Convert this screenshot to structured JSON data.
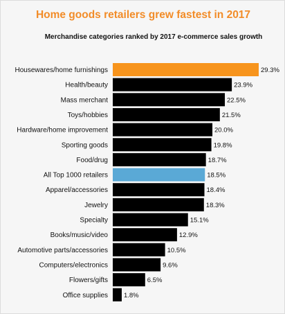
{
  "chart_data": {
    "type": "bar",
    "orientation": "horizontal",
    "title": "Home goods retailers grew fastest in 2017",
    "subtitle": "Merchandise categories ranked by 2017 e-commerce sales growth",
    "categories": [
      "Housewares/home furnishings",
      "Health/beauty",
      "Mass merchant",
      "Toys/hobbies",
      "Hardware/home improvement",
      "Sporting goods",
      "Food/drug",
      "All Top 1000 retailers",
      "Apparel/accessories",
      "Jewelry",
      "Specialty",
      "Books/music/video",
      "Automotive parts/accessories",
      "Computers/electronics",
      "Flowers/gifts",
      "Office supplies"
    ],
    "values": [
      29.3,
      23.9,
      22.5,
      21.5,
      20.0,
      19.8,
      18.7,
      18.5,
      18.4,
      18.3,
      15.1,
      12.9,
      10.5,
      9.6,
      6.5,
      1.8
    ],
    "value_labels": [
      "29.3%",
      "23.9%",
      "22.5%",
      "21.5%",
      "20.0%",
      "19.8%",
      "18.7%",
      "18.5%",
      "18.4%",
      "18.3%",
      "15.1%",
      "12.9%",
      "10.5%",
      "9.6%",
      "6.5%",
      "1.8%"
    ],
    "bar_colors": [
      "#f7941d",
      "#000000",
      "#000000",
      "#000000",
      "#000000",
      "#000000",
      "#000000",
      "#5aa9d6",
      "#000000",
      "#000000",
      "#000000",
      "#000000",
      "#000000",
      "#000000",
      "#000000",
      "#000000"
    ],
    "xlim": [
      0,
      29.3
    ],
    "grid": false,
    "legend": "none"
  },
  "colors": {
    "title": "#f28c28",
    "highlight": "#f7941d",
    "benchmark": "#5aa9d6",
    "default_bar": "#000000"
  }
}
